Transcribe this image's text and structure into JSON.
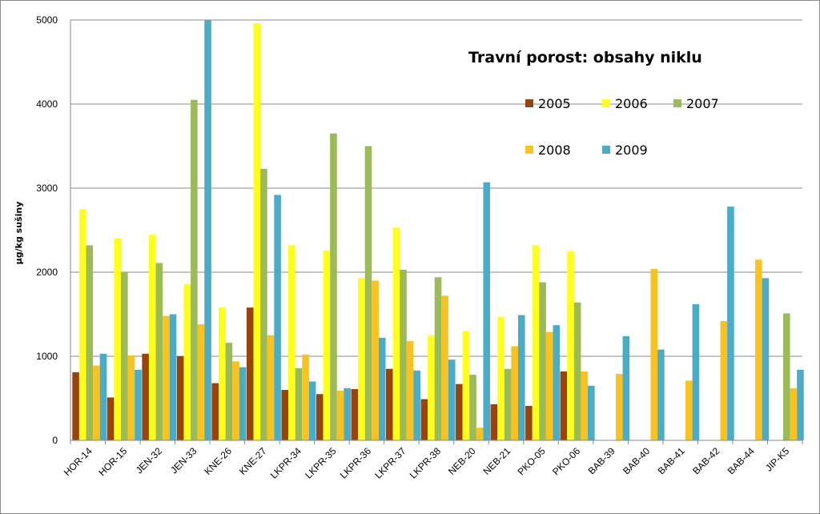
{
  "chart_data": {
    "type": "bar",
    "title": "Travní porost: obsahy  niklu",
    "xlabel": "",
    "ylabel": "µg/kg sušiny",
    "ylim": [
      0,
      5000
    ],
    "yticks": [
      "0",
      "1000",
      "2000",
      "3000",
      "4000",
      "5000"
    ],
    "grid": true,
    "legend_placement": "top-right",
    "categories": [
      "HOR-14",
      "HOR-15",
      "JEN-32",
      "JEN-33",
      "KNE-26",
      "KNE-27",
      "LKPR-34",
      "LKPR-35",
      "LKPR-36",
      "LKPR-37",
      "LKPR-38",
      "NEB-20",
      "NEB-21",
      "PKO-05",
      "PKO-06",
      "BAB-39",
      "BAB-40",
      "BAB-41",
      "BAB-42",
      "BAB-44",
      "JIP-K5"
    ],
    "series": [
      {
        "name": "2005",
        "color": "#99440f",
        "values": [
          810,
          510,
          1030,
          1000,
          680,
          1580,
          600,
          550,
          610,
          850,
          490,
          670,
          430,
          410,
          820,
          null,
          null,
          null,
          null,
          null,
          null
        ]
      },
      {
        "name": "2006",
        "color": "#ffff1a",
        "values": [
          2750,
          2400,
          2450,
          1860,
          1580,
          4960,
          2320,
          2260,
          1930,
          2530,
          1250,
          1300,
          1470,
          2320,
          2250,
          null,
          null,
          null,
          null,
          null,
          null
        ]
      },
      {
        "name": "2007",
        "color": "#9bbb59",
        "values": [
          2320,
          2000,
          2110,
          4050,
          1160,
          3230,
          860,
          3650,
          3500,
          2030,
          1940,
          780,
          850,
          1880,
          1640,
          null,
          null,
          null,
          null,
          null,
          1510
        ]
      },
      {
        "name": "2008",
        "color": "#fac21e",
        "values": [
          890,
          1010,
          1480,
          1380,
          940,
          1250,
          1020,
          590,
          1900,
          1180,
          1720,
          150,
          1120,
          1290,
          820,
          790,
          2040,
          710,
          1420,
          2150,
          620
        ]
      },
      {
        "name": "2009",
        "color": "#4aacc6",
        "values": [
          1030,
          840,
          1500,
          5000,
          870,
          2920,
          700,
          620,
          1220,
          830,
          960,
          3070,
          1490,
          1370,
          650,
          1240,
          1080,
          1620,
          2780,
          1930,
          840
        ]
      }
    ]
  }
}
